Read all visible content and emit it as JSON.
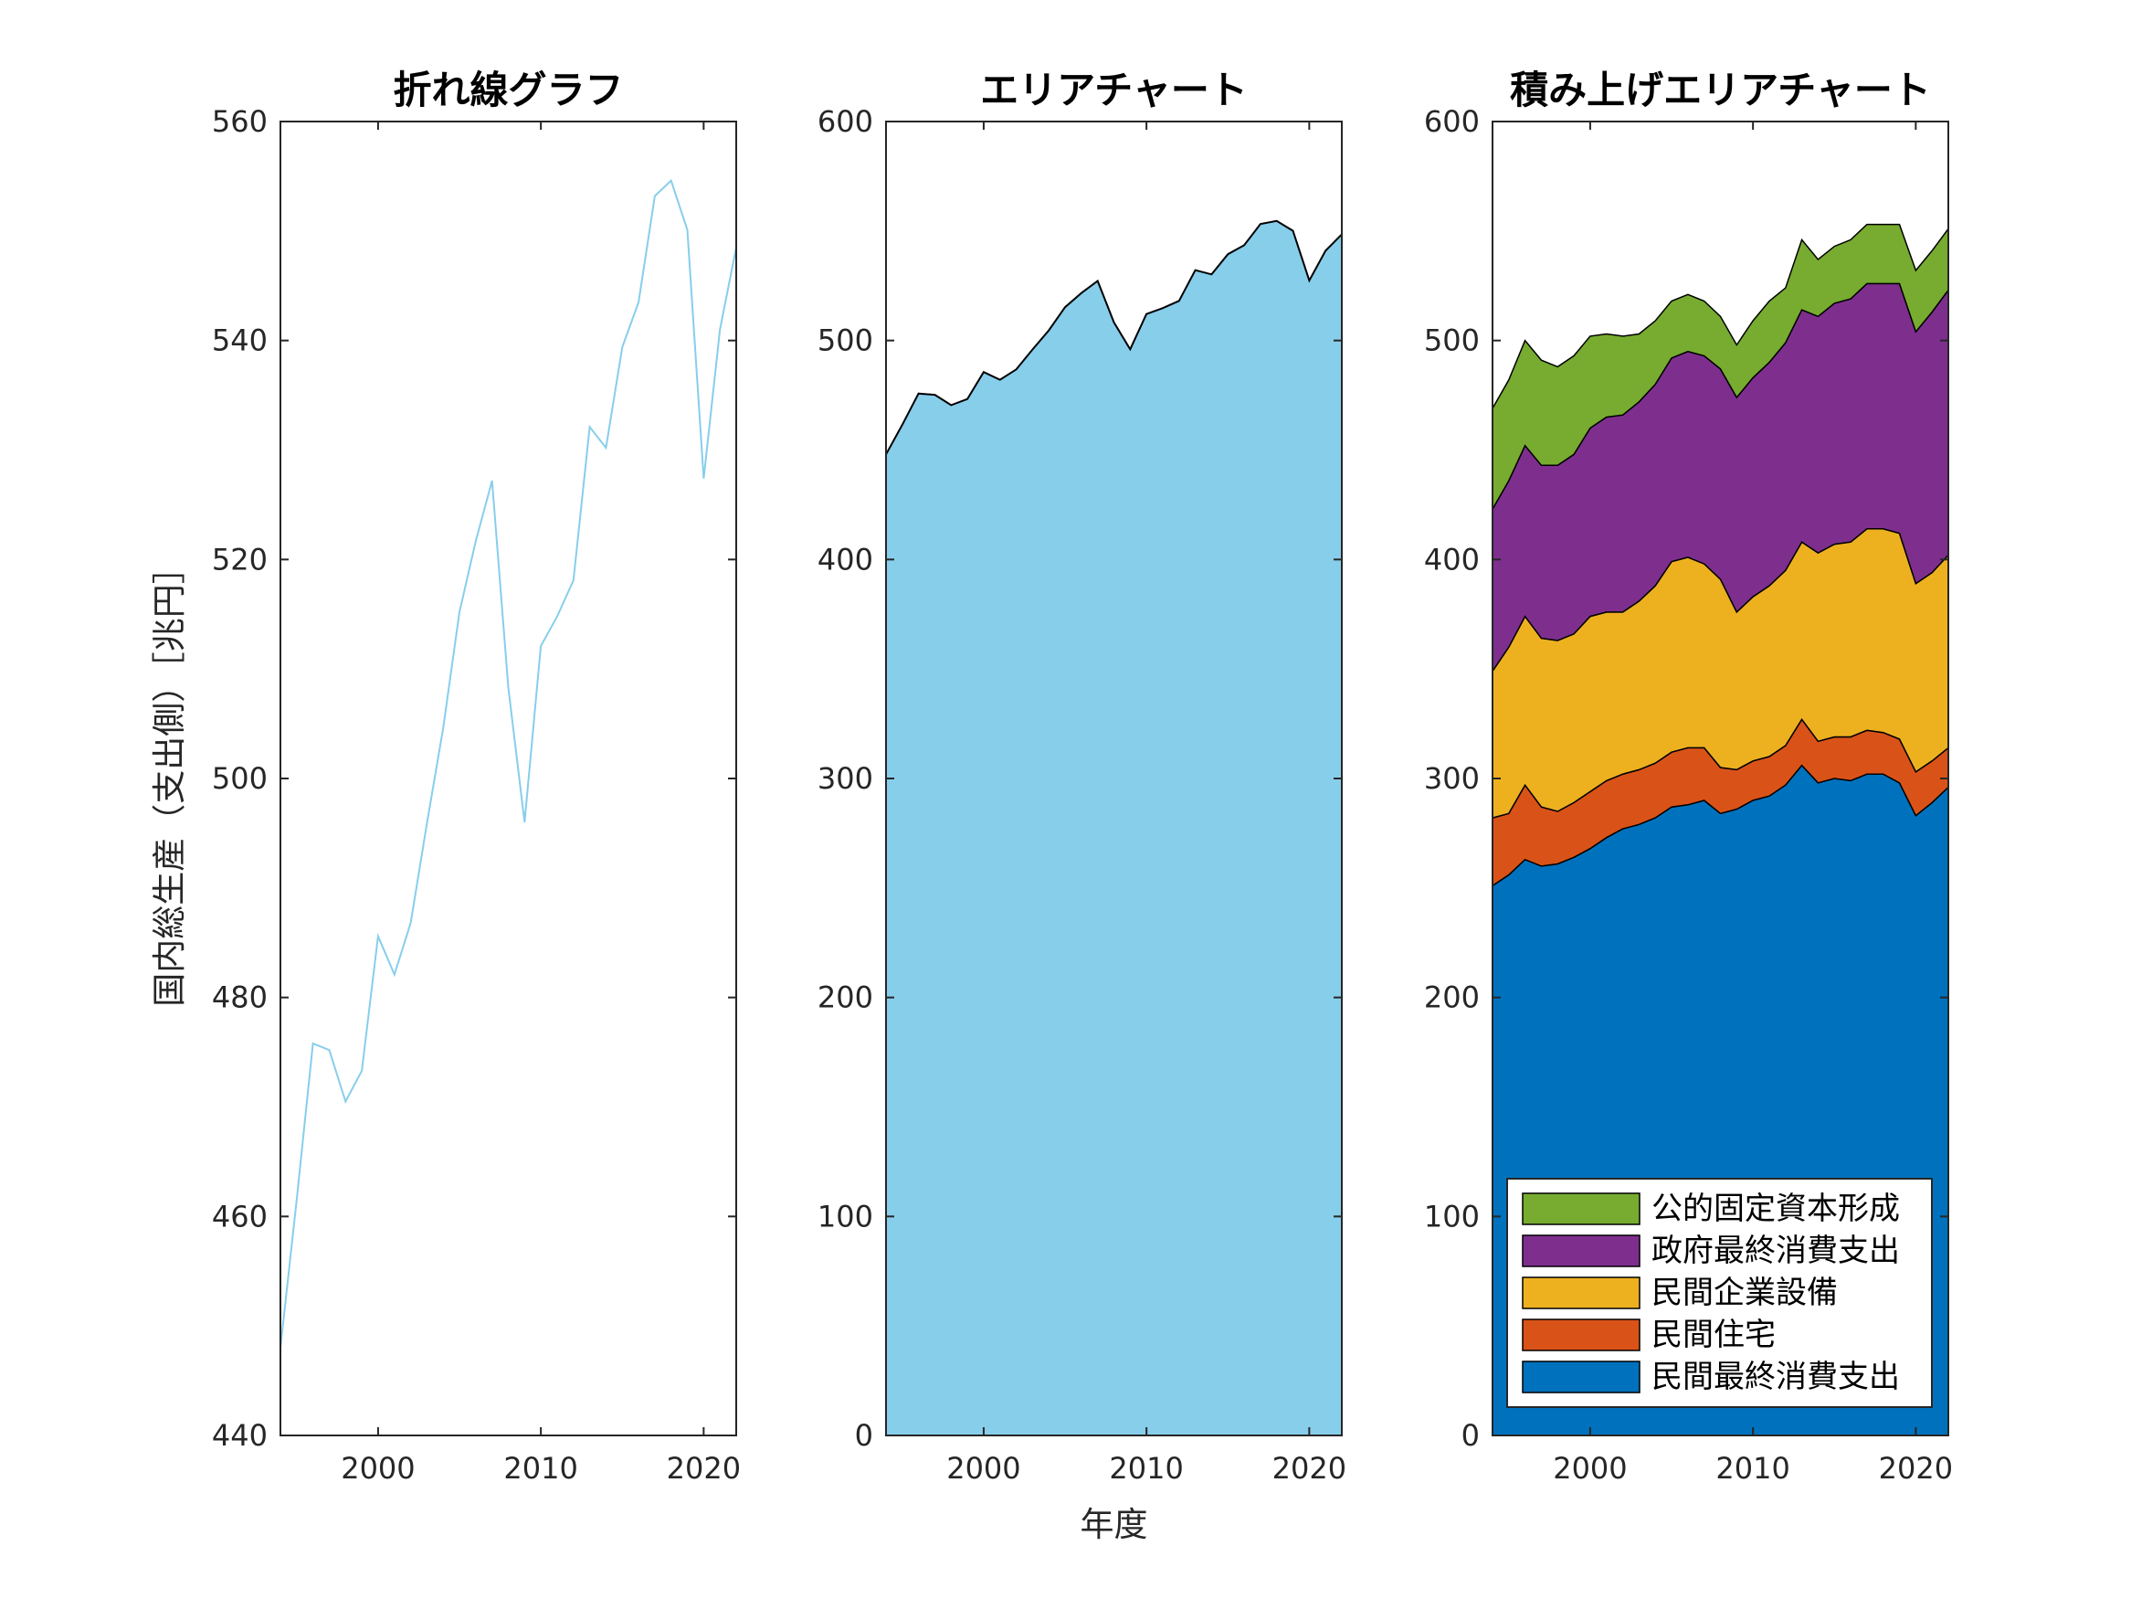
{
  "chart_data": [
    {
      "type": "line",
      "title": "折れ線グラフ",
      "xlabel": "",
      "ylabel": "国内総生産（支出側）［兆円］",
      "xlim": [
        1994,
        2022
      ],
      "ylim": [
        440,
        560
      ],
      "yticks": [
        440,
        460,
        480,
        500,
        520,
        540,
        560
      ],
      "xticks": [
        2000,
        2010,
        2020
      ],
      "grid": false,
      "color": "#87CEEB",
      "x": [
        1994,
        1995,
        1996,
        1997,
        1998,
        1999,
        2000,
        2001,
        2002,
        2003,
        2004,
        2005,
        2006,
        2007,
        2008,
        2009,
        2010,
        2011,
        2012,
        2013,
        2014,
        2015,
        2016,
        2017,
        2018,
        2019,
        2020,
        2021,
        2022
      ],
      "series": [
        {
          "values": [
            448.0,
            461.5,
            475.8,
            475.2,
            470.5,
            473.3,
            485.6,
            482.1,
            486.8,
            495.9,
            504.6,
            515.2,
            521.7,
            527.2,
            508.3,
            496.0,
            512.1,
            514.8,
            518.1,
            532.1,
            530.2,
            539.4,
            543.5,
            553.2,
            554.6,
            550.1,
            527.4,
            541.0,
            548.5
          ]
        }
      ]
    },
    {
      "type": "area",
      "title": "エリアチャート",
      "xlabel": "年度",
      "ylabel": "",
      "xlim": [
        1994,
        2022
      ],
      "ylim": [
        0,
        600
      ],
      "yticks": [
        0,
        100,
        200,
        300,
        400,
        500,
        600
      ],
      "xticks": [
        2000,
        2010,
        2020
      ],
      "grid": false,
      "color": "#87CEEB",
      "x": [
        1994,
        1995,
        1996,
        1997,
        1998,
        1999,
        2000,
        2001,
        2002,
        2003,
        2004,
        2005,
        2006,
        2007,
        2008,
        2009,
        2010,
        2011,
        2012,
        2013,
        2014,
        2015,
        2016,
        2017,
        2018,
        2019,
        2020,
        2021,
        2022
      ],
      "series": [
        {
          "values": [
            448.0,
            461.5,
            475.8,
            475.2,
            470.5,
            473.3,
            485.6,
            482.1,
            486.8,
            495.9,
            504.6,
            515.2,
            521.7,
            527.2,
            508.3,
            496.0,
            512.1,
            514.8,
            518.1,
            532.1,
            530.2,
            539.4,
            543.5,
            553.2,
            554.6,
            550.1,
            527.4,
            541.0,
            548.5
          ]
        }
      ]
    },
    {
      "type": "area",
      "stacked": true,
      "title": "積み上げエリアチャート",
      "xlabel": "",
      "ylabel": "",
      "xlim": [
        1994,
        2022
      ],
      "ylim": [
        0,
        600
      ],
      "yticks": [
        0,
        100,
        200,
        300,
        400,
        500,
        600
      ],
      "xticks": [
        2000,
        2010,
        2020
      ],
      "grid": false,
      "legend_position": "bottom-right",
      "x": [
        1994,
        1995,
        1996,
        1997,
        1998,
        1999,
        2000,
        2001,
        2002,
        2003,
        2004,
        2005,
        2006,
        2007,
        2008,
        2009,
        2010,
        2011,
        2012,
        2013,
        2014,
        2015,
        2016,
        2017,
        2018,
        2019,
        2020,
        2021,
        2022
      ],
      "series": [
        {
          "name": "民間最終消費支出",
          "color": "#0072BD",
          "values": [
            251,
            256,
            263,
            260,
            261,
            264,
            268,
            273,
            277,
            279,
            282,
            287,
            288,
            290,
            284,
            286,
            290,
            292,
            297,
            306,
            298,
            300,
            299,
            302,
            302,
            298,
            283,
            289,
            296
          ]
        },
        {
          "name": "民間住宅",
          "color": "#D95319",
          "values": [
            31,
            28,
            34,
            27,
            24,
            25,
            26,
            26,
            25,
            25,
            25,
            25,
            26,
            24,
            21,
            18,
            18,
            18,
            18,
            21,
            19,
            19,
            20,
            20,
            19,
            20,
            20,
            19,
            18
          ]
        },
        {
          "name": "民間企業設備",
          "color": "#EDB120",
          "values": [
            67,
            76,
            77,
            77,
            78,
            77,
            80,
            77,
            74,
            77,
            81,
            87,
            87,
            84,
            86,
            72,
            75,
            78,
            80,
            81,
            86,
            88,
            89,
            92,
            93,
            94,
            86,
            86,
            88
          ]
        },
        {
          "name": "政府最終消費支出",
          "color": "#7E2F8E",
          "values": [
            74,
            76,
            78,
            79,
            80,
            82,
            86,
            89,
            90,
            91,
            92,
            93,
            94,
            95,
            96,
            98,
            100,
            102,
            104,
            106,
            108,
            110,
            111,
            112,
            112,
            114,
            115,
            119,
            121
          ]
        },
        {
          "name": "公的固定資本形成",
          "color": "#77AC30",
          "values": [
            46,
            46,
            48,
            48,
            45,
            45,
            42,
            38,
            36,
            31,
            29,
            26,
            26,
            25,
            24,
            24,
            26,
            28,
            25,
            32,
            26,
            26,
            27,
            27,
            27,
            27,
            28,
            28,
            28
          ]
        }
      ]
    }
  ]
}
